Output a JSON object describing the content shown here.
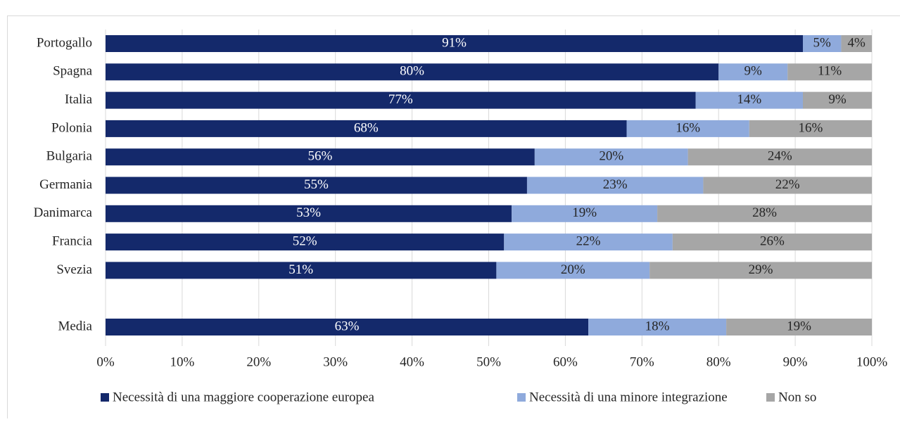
{
  "chart_data": {
    "type": "stacked_barh",
    "categories": [
      "Portogallo",
      "Spagna",
      "Italia",
      "Polonia",
      "Bulgaria",
      "Germania",
      "Danimarca",
      "Francia",
      "Svezia",
      null,
      "Media"
    ],
    "series": [
      {
        "name": "Necessità di una maggiore cooperazione europea",
        "color": "#14296b",
        "label_color": "#ffffff",
        "values": [
          91,
          80,
          77,
          68,
          56,
          55,
          53,
          52,
          51,
          null,
          63
        ],
        "value_labels": [
          "91%",
          "80%",
          "77%",
          "68%",
          "56%",
          "55%",
          "53%",
          "52%",
          "51%",
          null,
          "63%"
        ]
      },
      {
        "name": "Necessità di una minore integrazione",
        "color": "#8faadc",
        "label_color": "#262626",
        "values": [
          5,
          9,
          14,
          16,
          20,
          23,
          19,
          22,
          20,
          null,
          18
        ],
        "value_labels": [
          "5%",
          "9%",
          "14%",
          "16%",
          "20%",
          "23%",
          "19%",
          "22%",
          "20%",
          null,
          "18%"
        ]
      },
      {
        "name": "Non so",
        "color": "#a6a6a6",
        "label_color": "#262626",
        "values": [
          4,
          11,
          9,
          16,
          24,
          22,
          28,
          26,
          29,
          null,
          19
        ],
        "value_labels": [
          "4%",
          "11%",
          "9%",
          "16%",
          "24%",
          "22%",
          "28%",
          "26%",
          "29%",
          null,
          "19%"
        ]
      }
    ],
    "xlim": [
      0,
      100
    ],
    "xticks": [
      {
        "value": 0,
        "label": "0%"
      },
      {
        "value": 10,
        "label": "10%"
      },
      {
        "value": 20,
        "label": "20%"
      },
      {
        "value": 30,
        "label": "30%"
      },
      {
        "value": 40,
        "label": "40%"
      },
      {
        "value": 50,
        "label": "50%"
      },
      {
        "value": 60,
        "label": "60%"
      },
      {
        "value": 70,
        "label": "70%"
      },
      {
        "value": 80,
        "label": "80%"
      },
      {
        "value": 90,
        "label": "90%"
      },
      {
        "value": 100,
        "label": "100%"
      }
    ],
    "grid": true,
    "legend": "bottom"
  }
}
